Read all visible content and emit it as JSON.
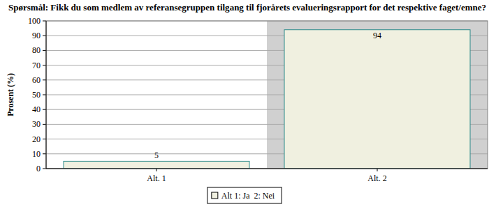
{
  "chart_data": {
    "type": "bar",
    "title": "Spørsmål: Fikk du som medlem av referansegruppen tilgang til fjorårets evalueringsrapport for det respektive faget/emne?",
    "y_label": "Prosent (%)",
    "categories": [
      "Alt. 1",
      "Alt. 2"
    ],
    "series": [
      {
        "name": "Alt 1: Ja  2: Nei",
        "color": "#f0f0e0",
        "values": [
          5,
          94
        ]
      }
    ],
    "ylim": [
      0,
      100
    ],
    "yticks": [
      0,
      10,
      20,
      30,
      40,
      50,
      60,
      70,
      80,
      90,
      100
    ],
    "grid": true,
    "legend": "bottom",
    "data_labels": true
  }
}
